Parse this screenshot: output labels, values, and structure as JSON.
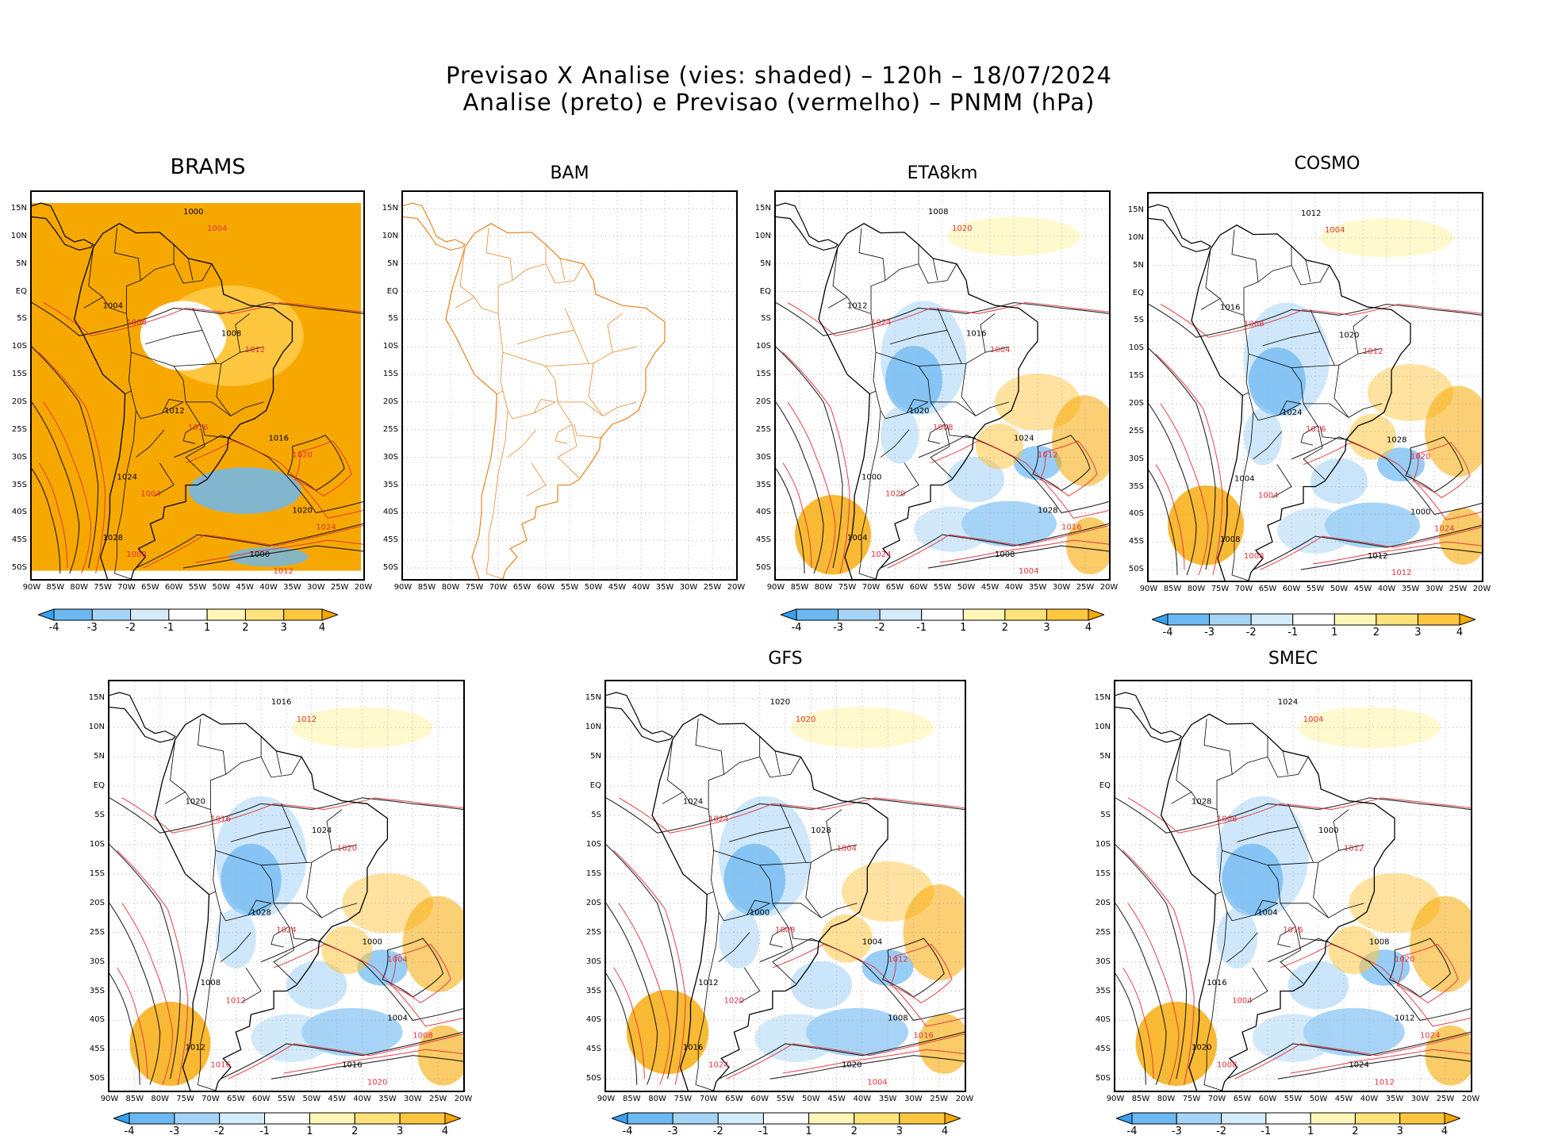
{
  "title": {
    "line1": "Previsao X Analise (vies: shaded) – 120h – 18/07/2024",
    "line2": "Analise (preto) e Previsao (vermelho) – PNMM (hPa)"
  },
  "panels": [
    {
      "name": "BRAMS",
      "kind": "brams"
    },
    {
      "name": "BAM",
      "kind": "blank"
    },
    {
      "name": "ETA8km",
      "kind": "bias"
    },
    {
      "name": "COSMO",
      "kind": "bias"
    },
    {
      "name": "",
      "kind": "bias"
    },
    {
      "name": "GFS",
      "kind": "bias"
    },
    {
      "name": "SMEC",
      "kind": "bias"
    }
  ],
  "axes": {
    "lat_labels": [
      "15N",
      "10N",
      "5N",
      "EQ",
      "5S",
      "10S",
      "15S",
      "20S",
      "25S",
      "30S",
      "35S",
      "40S",
      "45S",
      "50S"
    ],
    "lon_labels": [
      "90W",
      "85W",
      "80W",
      "75W",
      "70W",
      "65W",
      "60W",
      "55W",
      "50W",
      "45W",
      "40W",
      "35W",
      "30W",
      "25W",
      "20W"
    ]
  },
  "colorbar": {
    "labels": [
      "-4",
      "-3",
      "-2",
      "-1",
      "1",
      "2",
      "3",
      "4"
    ],
    "colors": [
      "#3aa0ef",
      "#6cb8f2",
      "#a6d4f6",
      "#d4ecfa",
      "#ffffff",
      "#fff6b8",
      "#ffe27a",
      "#ffc640",
      "#f7a800"
    ]
  },
  "isobars": {
    "black": [
      "1000",
      "1004",
      "1008",
      "1012",
      "1016",
      "1020",
      "1024",
      "1028"
    ],
    "red": [
      "1004",
      "1008",
      "1012",
      "1016",
      "1020",
      "1024"
    ]
  },
  "colors": {
    "analysis": "#000000",
    "forecast": "#e0323c",
    "coast_bam": "#e88a2a",
    "grid": "#b0b0b0"
  }
}
